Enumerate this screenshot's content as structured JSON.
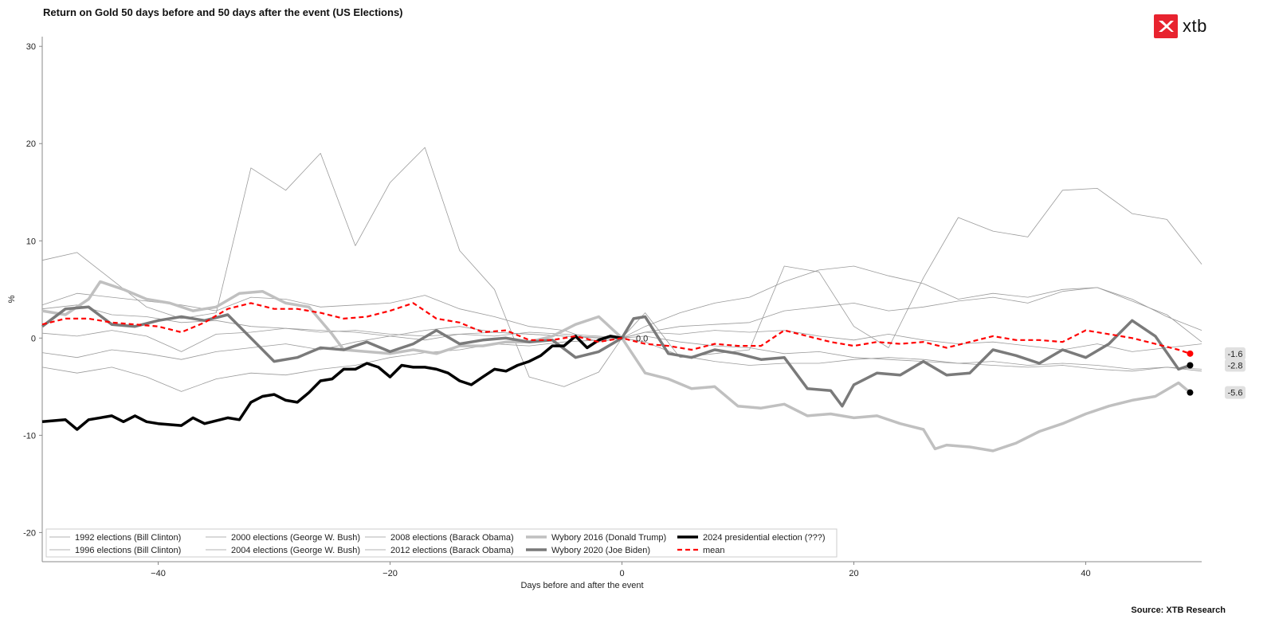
{
  "title": "Return on Gold 50 days before and 50 days after the event (US Elections)",
  "brand": {
    "name": "xtb",
    "accent": "#e8232f"
  },
  "source": "Source: XTB Research",
  "chart_data": {
    "type": "line",
    "title": "Return on Gold 50 days before and 50 days after the event (US Elections)",
    "xlabel": "Days before and after the event",
    "ylabel": "%",
    "xlim": [
      -50,
      50
    ],
    "ylim": [
      -23,
      31
    ],
    "xticks": [
      -40,
      -20,
      0,
      20,
      40
    ],
    "yticks": [
      -20,
      -10,
      0,
      10,
      20,
      30
    ],
    "grid": false,
    "legend_position": "bottom-left",
    "zero_annotation": "0.0",
    "series": [
      {
        "name": "1992 elections (Bill Clinton)",
        "color": "#9a9a9a",
        "width": 0.8,
        "x": [
          -50,
          -47,
          -44,
          -41,
          -38,
          -35,
          -32,
          -29,
          -26,
          -23,
          -20,
          -17,
          -14,
          -11,
          -8,
          -5,
          -2,
          0,
          2,
          5,
          8,
          11,
          14,
          17,
          20,
          23,
          26,
          29,
          32,
          35,
          38,
          41,
          44,
          47,
          50
        ],
        "y": [
          -3.0,
          -3.6,
          -3.0,
          -4.0,
          -5.5,
          -4.2,
          -3.6,
          -3.8,
          -3.2,
          -2.8,
          -2.0,
          -1.5,
          -1.2,
          -0.6,
          -0.8,
          -0.4,
          -0.2,
          0,
          -0.4,
          -1.8,
          -2.4,
          -2.8,
          -2.6,
          -2.6,
          -2.2,
          -2.0,
          -2.2,
          -2.6,
          -2.4,
          -2.8,
          -2.6,
          -2.8,
          -3.2,
          -3.0,
          -3.4
        ]
      },
      {
        "name": "1996 elections (Bill Clinton)",
        "color": "#9a9a9a",
        "width": 0.8,
        "x": [
          -50,
          -47,
          -44,
          -41,
          -38,
          -35,
          -32,
          -29,
          -26,
          -23,
          -20,
          -17,
          -14,
          -11,
          -8,
          -5,
          -2,
          0,
          2,
          5,
          8,
          11,
          14,
          17,
          20,
          23,
          26,
          29,
          32,
          35,
          38,
          41,
          44,
          47,
          50
        ],
        "y": [
          3.0,
          3.4,
          2.4,
          2.2,
          1.6,
          1.8,
          1.2,
          1.0,
          0.6,
          0.8,
          0.4,
          0.2,
          0.4,
          0.6,
          0.4,
          0.2,
          0.0,
          0,
          0.2,
          -0.4,
          -0.8,
          -1.0,
          -1.6,
          -1.4,
          -2.0,
          -2.2,
          -2.4,
          -2.6,
          -2.8,
          -3.0,
          -2.8,
          -3.2,
          -3.4,
          -3.0,
          -3.2
        ]
      },
      {
        "name": "2000 elections (George W. Bush)",
        "color": "#9a9a9a",
        "width": 0.8,
        "x": [
          -50,
          -47,
          -44,
          -41,
          -38,
          -35,
          -32,
          -29,
          -26,
          -23,
          -20,
          -17,
          -14,
          -11,
          -8,
          -5,
          -2,
          0,
          2,
          5,
          8,
          11,
          14,
          17,
          20,
          23,
          26,
          29,
          32,
          35,
          38,
          41,
          44,
          47,
          50
        ],
        "y": [
          0.5,
          0.2,
          0.8,
          0.2,
          -1.4,
          0.4,
          0.6,
          1.0,
          0.8,
          0.6,
          0.2,
          0.8,
          1.2,
          0.6,
          0.4,
          0.2,
          0.1,
          0,
          0.6,
          0.4,
          0.8,
          0.6,
          0.8,
          0.2,
          -0.2,
          0.4,
          -0.2,
          -0.6,
          -0.4,
          -0.8,
          -1.2,
          -0.6,
          -1.4,
          -1.0,
          -0.6
        ]
      },
      {
        "name": "2004 elections (George W. Bush)",
        "color": "#9a9a9a",
        "width": 0.8,
        "x": [
          -50,
          -47,
          -44,
          -41,
          -38,
          -35,
          -32,
          -29,
          -26,
          -23,
          -20,
          -17,
          -14,
          -11,
          -8,
          -5,
          -2,
          0,
          2,
          5,
          8,
          11,
          14,
          17,
          20,
          23,
          26,
          29,
          32,
          35,
          38,
          41,
          44,
          47,
          50
        ],
        "y": [
          -1.5,
          -2.0,
          -1.2,
          -1.6,
          -2.2,
          -1.4,
          -1.0,
          -0.6,
          -1.2,
          -0.4,
          0.2,
          -0.2,
          0.4,
          0.2,
          0.6,
          0.4,
          0.2,
          0,
          0.6,
          1.2,
          1.4,
          1.6,
          2.8,
          3.2,
          3.6,
          2.8,
          3.2,
          3.8,
          4.2,
          3.6,
          4.8,
          5.2,
          4.0,
          2.2,
          0.8
        ]
      },
      {
        "name": "2008 elections (Barack Obama)",
        "color": "#9a9a9a",
        "width": 0.8,
        "x": [
          -50,
          -47,
          -44,
          -41,
          -38,
          -35,
          -32,
          -29,
          -26,
          -23,
          -20,
          -17,
          -14,
          -11,
          -8,
          -5,
          -2,
          0,
          2,
          5,
          8,
          11,
          14,
          17,
          20,
          23,
          26,
          29,
          32,
          35,
          38,
          41,
          44,
          47,
          50
        ],
        "y": [
          8.0,
          8.8,
          6.0,
          3.2,
          2.0,
          2.6,
          17.5,
          15.2,
          19.0,
          9.5,
          16.0,
          19.6,
          9.0,
          5.0,
          -4.0,
          -5.0,
          -3.5,
          0,
          2.6,
          -2.0,
          -1.6,
          -1.2,
          7.4,
          6.8,
          1.2,
          -1.0,
          6.2,
          12.4,
          11.0,
          10.4,
          15.2,
          15.4,
          12.8,
          12.2,
          7.6
        ]
      },
      {
        "name": "2012 elections (Barack Obama)",
        "color": "#9a9a9a",
        "width": 0.8,
        "x": [
          -50,
          -47,
          -44,
          -41,
          -38,
          -35,
          -32,
          -29,
          -26,
          -23,
          -20,
          -17,
          -14,
          -11,
          -8,
          -5,
          -2,
          0,
          2,
          5,
          8,
          11,
          14,
          17,
          20,
          23,
          26,
          29,
          32,
          35,
          38,
          41,
          44,
          47,
          50
        ],
        "y": [
          3.4,
          4.6,
          4.2,
          3.8,
          3.4,
          2.8,
          4.2,
          4.0,
          3.2,
          3.4,
          3.6,
          4.4,
          3.0,
          2.2,
          1.2,
          0.8,
          -0.4,
          0,
          1.2,
          2.6,
          3.6,
          4.2,
          5.8,
          7.0,
          7.4,
          6.4,
          5.6,
          4.0,
          4.6,
          4.2,
          5.0,
          5.2,
          3.8,
          2.4,
          -0.4
        ]
      },
      {
        "name": "Wybory 2016 (Donald Trump)",
        "color": "#c0c0c0",
        "width": 3.5,
        "x": [
          -50,
          -48,
          -46,
          -45,
          -43,
          -41,
          -39,
          -37,
          -35,
          -33,
          -31,
          -29,
          -27,
          -25,
          -24,
          -22,
          -20,
          -18,
          -16,
          -14,
          -12,
          -10,
          -8,
          -6,
          -4,
          -2,
          0,
          2,
          4,
          6,
          8,
          10,
          12,
          14,
          16,
          18,
          20,
          22,
          24,
          26,
          27,
          28,
          30,
          32,
          34,
          36,
          38,
          40,
          42,
          44,
          46,
          48,
          49
        ],
        "y": [
          2.8,
          2.4,
          4.0,
          5.8,
          5.0,
          4.0,
          3.6,
          2.8,
          3.2,
          4.6,
          4.8,
          3.6,
          3.2,
          0.4,
          -1.2,
          -1.4,
          -1.6,
          -1.2,
          -1.6,
          -0.8,
          -0.8,
          -0.4,
          -0.4,
          0.2,
          1.4,
          2.2,
          0.0,
          -3.6,
          -4.2,
          -5.2,
          -5.0,
          -7.0,
          -7.2,
          -6.8,
          -8.0,
          -7.8,
          -8.2,
          -8.0,
          -8.8,
          -9.4,
          -11.4,
          -11.0,
          -11.2,
          -11.6,
          -10.8,
          -9.6,
          -8.8,
          -7.8,
          -7.0,
          -6.4,
          -6.0,
          -4.6,
          -5.6
        ]
      },
      {
        "name": "Wybory 2020 (Joe Biden)",
        "color": "#7a7a7a",
        "width": 3.5,
        "x": [
          -50,
          -48,
          -46,
          -44,
          -42,
          -40,
          -38,
          -36,
          -34,
          -32,
          -30,
          -28,
          -26,
          -24,
          -22,
          -20,
          -18,
          -16,
          -14,
          -12,
          -10,
          -8,
          -6,
          -4,
          -2,
          0,
          1,
          2,
          4,
          6,
          8,
          10,
          12,
          14,
          16,
          18,
          19,
          20,
          22,
          24,
          26,
          28,
          30,
          32,
          34,
          36,
          38,
          40,
          42,
          44,
          46,
          48,
          49
        ],
        "y": [
          1.2,
          3.0,
          3.2,
          1.4,
          1.2,
          1.8,
          2.2,
          1.8,
          2.4,
          0.0,
          -2.4,
          -2.0,
          -1.0,
          -1.2,
          -0.4,
          -1.4,
          -0.6,
          0.8,
          -0.6,
          -0.2,
          0.0,
          -0.4,
          -0.2,
          -2.0,
          -1.4,
          0.0,
          2.0,
          2.2,
          -1.6,
          -2.0,
          -1.2,
          -1.6,
          -2.2,
          -2.0,
          -5.2,
          -5.4,
          -7.0,
          -4.8,
          -3.6,
          -3.8,
          -2.4,
          -3.8,
          -3.6,
          -1.2,
          -1.8,
          -2.6,
          -1.2,
          -2.0,
          -0.6,
          1.8,
          0.2,
          -3.2,
          -2.8
        ]
      },
      {
        "name": "2024 presidential election (???)",
        "color": "#000000",
        "width": 3.5,
        "x": [
          -50,
          -48,
          -47,
          -46,
          -44,
          -43,
          -42,
          -41,
          -40,
          -38,
          -37,
          -36,
          -34,
          -33,
          -32,
          -31,
          -30,
          -29,
          -28,
          -27,
          -26,
          -25,
          -24,
          -23,
          -22,
          -21,
          -20,
          -19,
          -18,
          -17,
          -16,
          -15,
          -14,
          -13,
          -12,
          -11,
          -10,
          -9,
          -8,
          -7,
          -6,
          -5,
          -4,
          -3,
          -2,
          -1,
          0
        ],
        "y": [
          -8.6,
          -8.4,
          -9.4,
          -8.4,
          -8.0,
          -8.6,
          -8.0,
          -8.6,
          -8.8,
          -9.0,
          -8.2,
          -8.8,
          -8.2,
          -8.4,
          -6.6,
          -6.0,
          -5.8,
          -6.4,
          -6.6,
          -5.6,
          -4.4,
          -4.2,
          -3.2,
          -3.2,
          -2.6,
          -3.0,
          -4.0,
          -2.8,
          -3.0,
          -3.0,
          -3.2,
          -3.6,
          -4.4,
          -4.8,
          -4.0,
          -3.2,
          -3.4,
          -2.8,
          -2.4,
          -1.8,
          -0.8,
          -0.8,
          0.2,
          -1.0,
          -0.2,
          0.2,
          0.0
        ]
      },
      {
        "name": "mean",
        "color": "#ff0000",
        "width": 2.2,
        "dash": "6,4",
        "x": [
          -50,
          -48,
          -46,
          -44,
          -42,
          -40,
          -38,
          -36,
          -34,
          -32,
          -30,
          -28,
          -26,
          -24,
          -22,
          -20,
          -18,
          -16,
          -14,
          -12,
          -10,
          -8,
          -6,
          -4,
          -2,
          0,
          2,
          4,
          6,
          8,
          10,
          12,
          14,
          16,
          18,
          20,
          22,
          24,
          26,
          28,
          30,
          32,
          34,
          36,
          38,
          40,
          42,
          44,
          46,
          48,
          49
        ],
        "y": [
          1.4,
          2.0,
          2.0,
          1.6,
          1.4,
          1.2,
          0.6,
          1.6,
          3.0,
          3.6,
          3.0,
          3.0,
          2.6,
          2.0,
          2.2,
          2.8,
          3.6,
          2.0,
          1.6,
          0.6,
          0.8,
          -0.2,
          -0.2,
          0.2,
          -0.4,
          0.0,
          -0.6,
          -0.8,
          -1.2,
          -0.6,
          -0.8,
          -0.8,
          0.8,
          0.2,
          -0.4,
          -0.8,
          -0.4,
          -0.6,
          -0.4,
          -1.0,
          -0.4,
          0.2,
          -0.2,
          -0.2,
          -0.4,
          0.8,
          0.4,
          0.0,
          -0.6,
          -1.2,
          -1.6
        ]
      }
    ],
    "end_labels": [
      {
        "value": -1.6,
        "label": "-1.6",
        "dot_color": "#ff0000"
      },
      {
        "value": -2.8,
        "label": "-2.8",
        "dot_color": "#000000"
      },
      {
        "value": -5.6,
        "label": "-5.6",
        "dot_color": "#000000"
      }
    ]
  }
}
